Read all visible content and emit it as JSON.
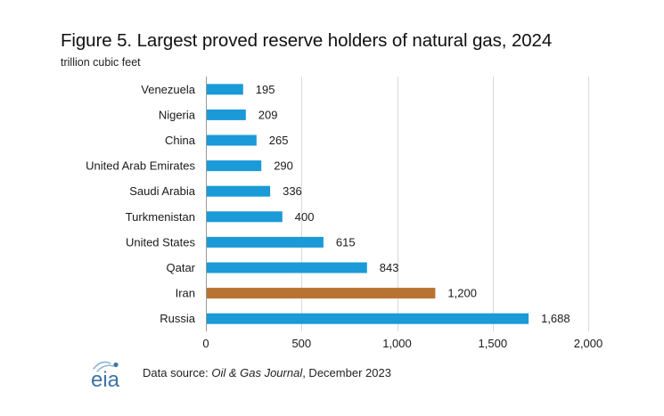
{
  "chart_data": {
    "type": "bar",
    "orientation": "horizontal",
    "title": "Figure 5. Largest  proved reserve holders of natural  gas, 2024",
    "unit_label": "trillion  cubic feet",
    "categories": [
      "Venezuela",
      "Nigeria",
      "China",
      "United Arab Emirates",
      "Saudi Arabia",
      "Turkmenistan",
      "United States",
      "Qatar",
      "Iran",
      "Russia"
    ],
    "values": [
      195,
      209,
      265,
      290,
      336,
      400,
      615,
      843,
      1200,
      1688
    ],
    "value_labels": [
      "195",
      "209",
      "265",
      "290",
      "336",
      "400",
      "615",
      "843",
      "1,200",
      "1,688"
    ],
    "bar_colors": [
      "#1a9ad6",
      "#1a9ad6",
      "#1a9ad6",
      "#1a9ad6",
      "#1a9ad6",
      "#1a9ad6",
      "#1a9ad6",
      "#1a9ad6",
      "#b87333",
      "#1a9ad6"
    ],
    "xlim": [
      0,
      2000
    ],
    "xticks": [
      0,
      500,
      1000,
      1500,
      2000
    ],
    "xtick_labels": [
      "0",
      "500",
      "1,000",
      "1,500",
      "2,000"
    ],
    "grid": true,
    "xlabel": "",
    "ylabel": ""
  },
  "colors": {
    "bar": "#1a9ad6",
    "highlight": "#b87333",
    "grid": "#d9d9d9",
    "logo": "#3f74a6"
  },
  "footer": {
    "logo_text": "eia",
    "source_prefix": "Data source: ",
    "source_publication": "Oil & Gas Journal",
    "source_suffix": ", December 2023"
  }
}
